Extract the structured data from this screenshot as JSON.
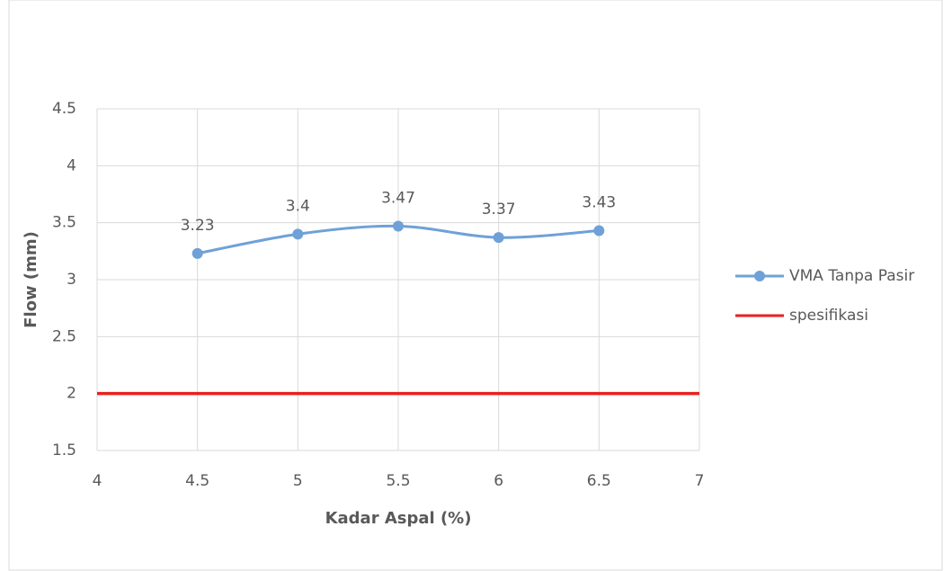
{
  "chart_data": {
    "type": "line",
    "xlabel": "Kadar Aspal (%)",
    "ylabel": "Flow (mm)",
    "series": [
      {
        "name": "VMA Tanpa Pasir",
        "color": "#6fa1d8",
        "x": [
          4.5,
          5,
          5.5,
          6,
          6.5
        ],
        "values": [
          3.23,
          3.4,
          3.47,
          3.37,
          3.43
        ],
        "smooth": true,
        "markers": true,
        "data_labels": true
      },
      {
        "name": "spesifikasi",
        "color": "#e8211f",
        "x": [
          4,
          7
        ],
        "values": [
          2,
          2
        ],
        "smooth": false,
        "markers": false,
        "data_labels": false
      }
    ],
    "xlim": [
      4,
      7
    ],
    "xticks": [
      4,
      4.5,
      5,
      5.5,
      6,
      6.5,
      7
    ],
    "ylim": [
      1.5,
      4.5
    ],
    "yticks": [
      1.5,
      2,
      2.5,
      3,
      3.5,
      4,
      4.5
    ],
    "grid": true,
    "legend": "right"
  }
}
